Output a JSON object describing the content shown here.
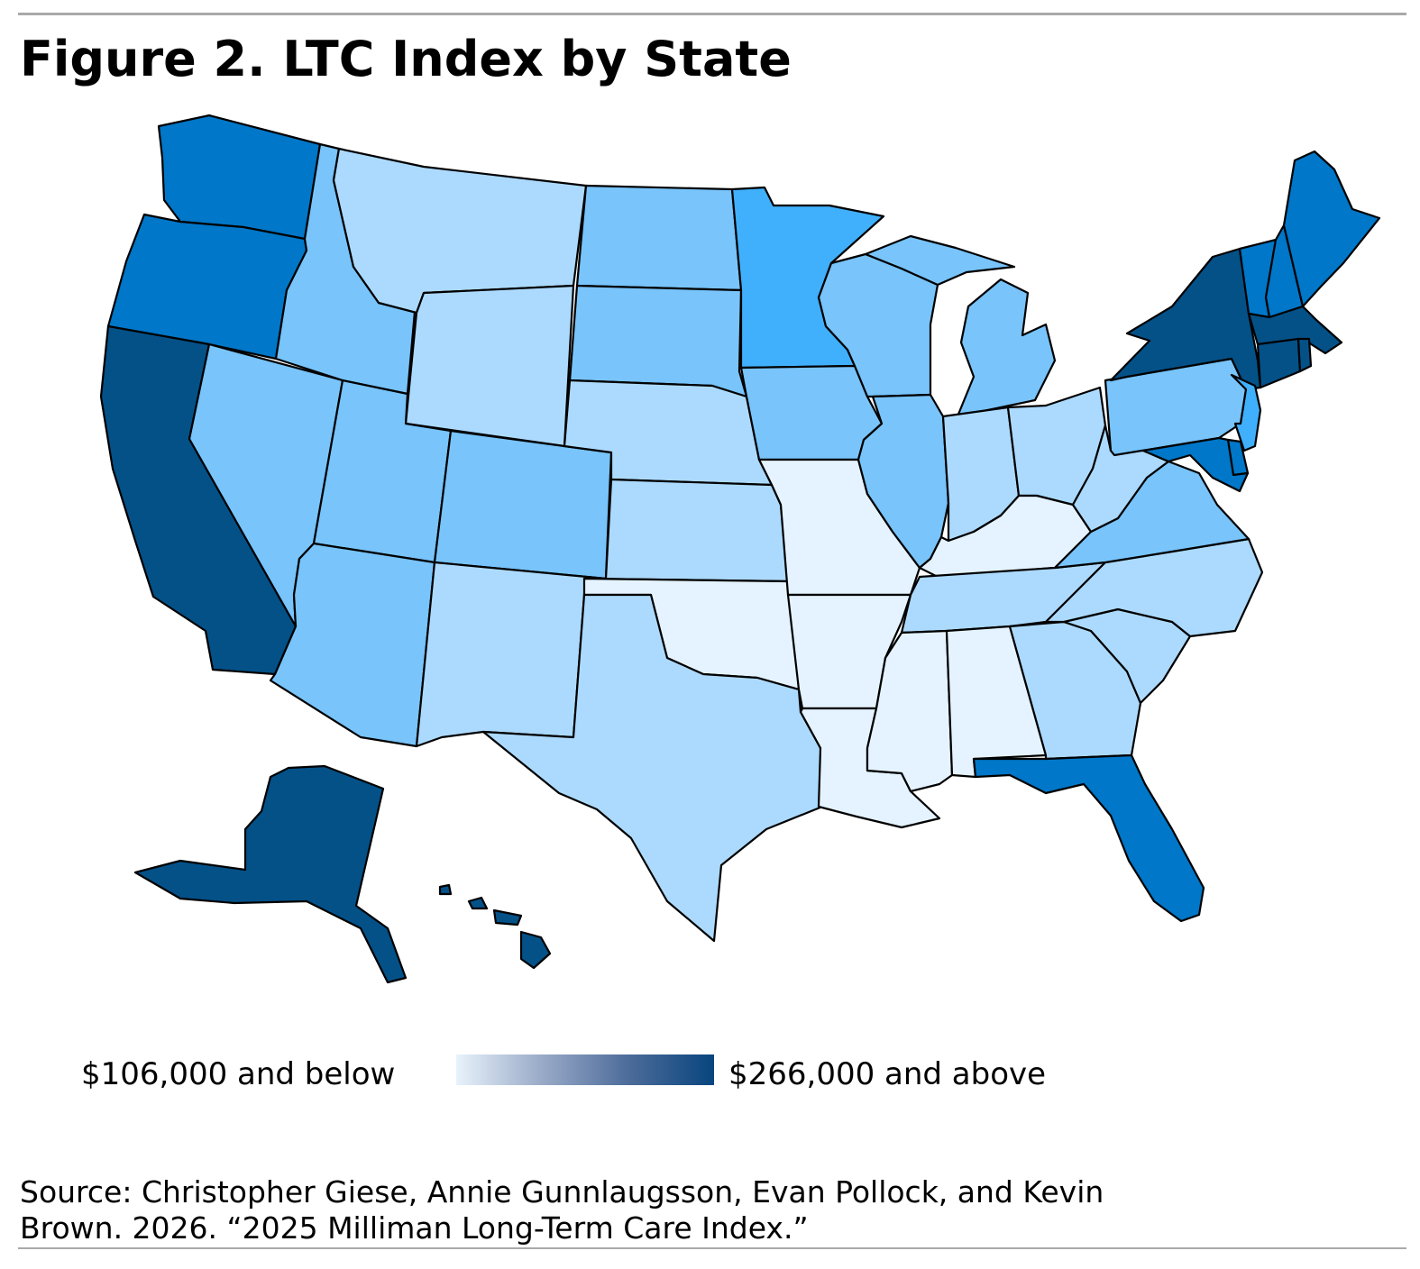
{
  "title": "Figure 2. LTC Index by State",
  "colors": {
    "tier1": "#e4f3ff",
    "tier2": "#acdafe",
    "tier3": "#78c4fb",
    "tier4": "#40b0fc",
    "tier5": "#0077c8",
    "tier6": "#045188",
    "border": "#000000"
  },
  "states": [
    {
      "code": "WA",
      "tier": 5
    },
    {
      "code": "OR",
      "tier": 5
    },
    {
      "code": "CA",
      "tier": 6
    },
    {
      "code": "NV",
      "tier": 3
    },
    {
      "code": "ID",
      "tier": 3
    },
    {
      "code": "MT",
      "tier": 2
    },
    {
      "code": "WY",
      "tier": 2
    },
    {
      "code": "UT",
      "tier": 3
    },
    {
      "code": "AZ",
      "tier": 3
    },
    {
      "code": "CO",
      "tier": 3
    },
    {
      "code": "NM",
      "tier": 2
    },
    {
      "code": "ND",
      "tier": 3
    },
    {
      "code": "SD",
      "tier": 3
    },
    {
      "code": "NE",
      "tier": 2
    },
    {
      "code": "KS",
      "tier": 2
    },
    {
      "code": "OK",
      "tier": 1
    },
    {
      "code": "TX",
      "tier": 2
    },
    {
      "code": "MN",
      "tier": 4
    },
    {
      "code": "IA",
      "tier": 3
    },
    {
      "code": "MO",
      "tier": 1
    },
    {
      "code": "AR",
      "tier": 1
    },
    {
      "code": "LA",
      "tier": 1
    },
    {
      "code": "WI",
      "tier": 3
    },
    {
      "code": "IL",
      "tier": 3
    },
    {
      "code": "MI",
      "tier": 3
    },
    {
      "code": "IN",
      "tier": 2
    },
    {
      "code": "OH",
      "tier": 2
    },
    {
      "code": "KY",
      "tier": 1
    },
    {
      "code": "TN",
      "tier": 2
    },
    {
      "code": "MS",
      "tier": 1
    },
    {
      "code": "AL",
      "tier": 1
    },
    {
      "code": "GA",
      "tier": 2
    },
    {
      "code": "FL",
      "tier": 5
    },
    {
      "code": "SC",
      "tier": 2
    },
    {
      "code": "NC",
      "tier": 2
    },
    {
      "code": "VA",
      "tier": 3
    },
    {
      "code": "WV",
      "tier": 2
    },
    {
      "code": "PA",
      "tier": 3
    },
    {
      "code": "NY",
      "tier": 6
    },
    {
      "code": "VT",
      "tier": 5
    },
    {
      "code": "NH",
      "tier": 5
    },
    {
      "code": "ME",
      "tier": 5
    },
    {
      "code": "MA",
      "tier": 6
    },
    {
      "code": "CT",
      "tier": 6
    },
    {
      "code": "RI",
      "tier": 6
    },
    {
      "code": "NJ",
      "tier": 4
    },
    {
      "code": "DE",
      "tier": 5
    },
    {
      "code": "MD",
      "tier": 5
    },
    {
      "code": "AK",
      "tier": 6
    },
    {
      "code": "HI",
      "tier": 6
    }
  ],
  "legend": {
    "low_label": "$106,000 and below",
    "high_label": "$266,000 and above"
  },
  "source": {
    "line1": "Source: Christopher Giese, Annie Gunnlaugsson, Evan Pollock, and Kevin",
    "line2": "Brown. 2026. “2025 Milliman Long-Term Care Index.”"
  }
}
